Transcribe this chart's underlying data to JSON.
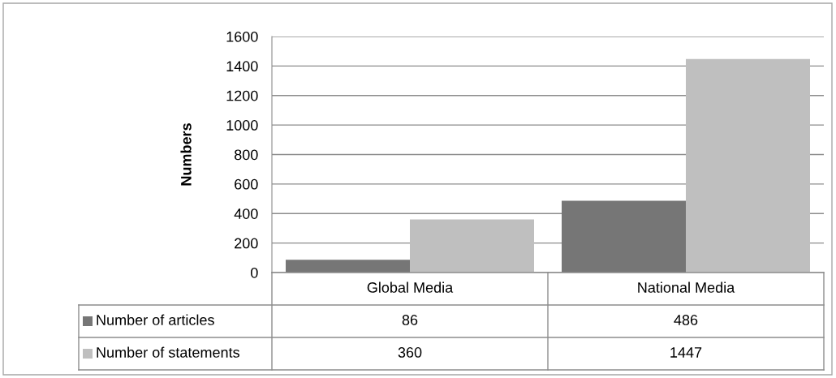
{
  "chart_data": {
    "type": "bar",
    "ylabel": "Numbers",
    "categories": [
      "Global Media",
      "National Media"
    ],
    "series": [
      {
        "name": "Number of articles",
        "color": "#767676",
        "values": [
          86,
          486
        ]
      },
      {
        "name": "Number of statements",
        "color": "#bfbfbf",
        "values": [
          360,
          1447
        ]
      }
    ],
    "ylim": [
      0,
      1600
    ],
    "yticks": [
      0,
      200,
      400,
      600,
      800,
      1000,
      1200,
      1400,
      1600
    ],
    "grid": "y",
    "data_labels": true,
    "legend": "bottom left"
  }
}
